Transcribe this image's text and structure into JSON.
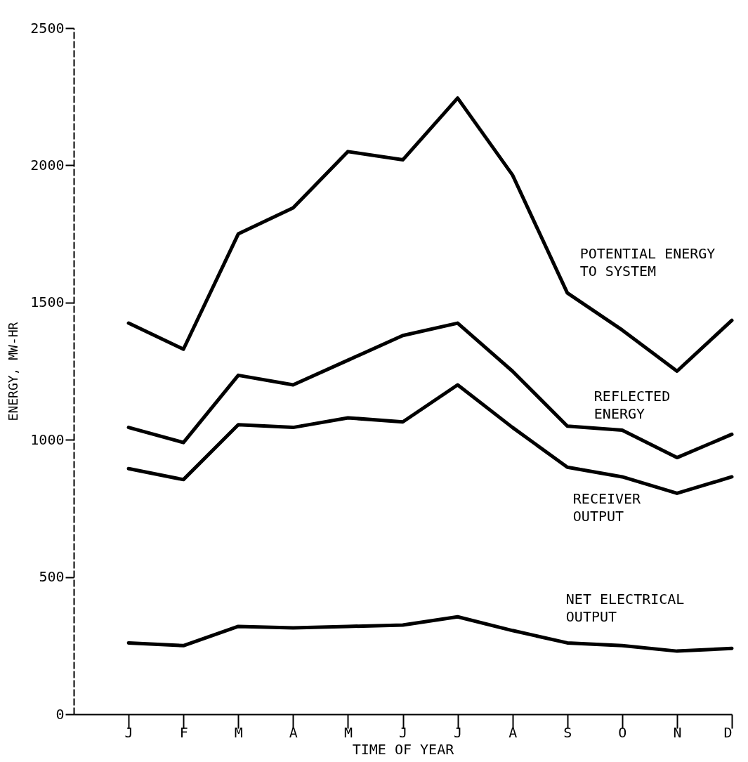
{
  "chart_data": {
    "type": "line",
    "xlabel": "TIME OF YEAR",
    "ylabel": "ENERGY, MW-HR",
    "categories": [
      "J",
      "F",
      "M",
      "A",
      "M",
      "J",
      "J",
      "A",
      "S",
      "O",
      "N",
      "D"
    ],
    "ylim": [
      0,
      2500
    ],
    "yticks": [
      0,
      500,
      1000,
      1500,
      2000,
      2500
    ],
    "grid": false,
    "marker": "none",
    "line_style": "solid",
    "series": [
      {
        "name": "POTENTIAL ENERGY TO SYSTEM",
        "color": "#000000",
        "values": [
          1425,
          1330,
          1750,
          1845,
          2050,
          2020,
          2245,
          1965,
          1535,
          1400,
          1250,
          1435
        ]
      },
      {
        "name": "REFLECTED ENERGY",
        "color": "#000000",
        "values": [
          1045,
          990,
          1235,
          1200,
          1290,
          1380,
          1425,
          1250,
          1050,
          1035,
          935,
          1020
        ]
      },
      {
        "name": "RECEIVER OUTPUT",
        "color": "#000000",
        "values": [
          895,
          855,
          1055,
          1045,
          1080,
          1065,
          1200,
          1045,
          900,
          865,
          805,
          865
        ]
      },
      {
        "name": "NET ELECTRICAL OUTPUT",
        "color": "#000000",
        "values": [
          260,
          250,
          320,
          315,
          320,
          325,
          355,
          305,
          260,
          250,
          230,
          240
        ]
      }
    ]
  }
}
